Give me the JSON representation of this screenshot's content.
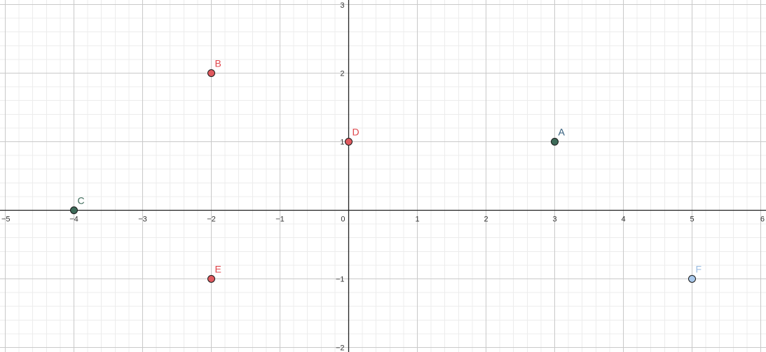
{
  "chart_data": {
    "type": "scatter",
    "xlim": [
      -5,
      6
    ],
    "ylim": [
      -2,
      3
    ],
    "x_ticks": [
      "-5",
      "-4",
      "-3",
      "-2",
      "-1",
      "0",
      "1",
      "2",
      "3",
      "4",
      "5",
      "6"
    ],
    "y_ticks": [
      "-2",
      "-1",
      "1",
      "2",
      "3"
    ],
    "grid": true,
    "minor_divisions": 5,
    "points": [
      {
        "label": "A",
        "x": 3,
        "y": 1,
        "fill": "#3d6b59",
        "stroke": "#1a1a1a",
        "label_color": "#2e5a7a"
      },
      {
        "label": "B",
        "x": -2,
        "y": 2,
        "fill": "#e05a5f",
        "stroke": "#1a1a1a",
        "label_color": "#e0474c"
      },
      {
        "label": "C",
        "x": -4,
        "y": 0,
        "fill": "#3d6b59",
        "stroke": "#1a1a1a",
        "label_color": "#3d6b59"
      },
      {
        "label": "D",
        "x": 0,
        "y": 1,
        "fill": "#e05a5f",
        "stroke": "#1a1a1a",
        "label_color": "#e0474c"
      },
      {
        "label": "E",
        "x": -2,
        "y": -1,
        "fill": "#e05a5f",
        "stroke": "#1a1a1a",
        "label_color": "#e0474c"
      },
      {
        "label": "F",
        "x": 5,
        "y": -1,
        "fill": "#a9c8ea",
        "stroke": "#1a1a1a",
        "label_color": "#9bbde3"
      }
    ]
  }
}
